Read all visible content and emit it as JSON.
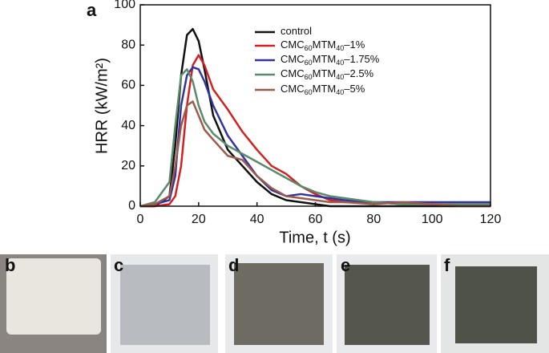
{
  "chart_data": {
    "type": "line",
    "panel_label": "a",
    "x_label": "Time, t (s)",
    "y_label": "HRR (kW/m²)",
    "x": [
      0,
      5,
      10,
      12,
      14,
      16,
      18,
      20,
      22,
      25,
      30,
      35,
      40,
      45,
      50,
      55,
      60,
      65,
      70,
      80,
      90,
      100,
      110,
      120
    ],
    "series": [
      {
        "name": "control",
        "color": "#111111",
        "values": [
          0,
          0,
          5,
          30,
          65,
          85,
          88,
          82,
          68,
          45,
          28,
          20,
          12,
          6,
          3,
          2,
          1,
          0,
          0,
          0,
          0,
          0,
          0,
          0
        ]
      },
      {
        "name": "CMC60MTM40–1%",
        "color": "#d42020",
        "values": [
          0,
          0,
          1,
          5,
          20,
          50,
          70,
          75,
          70,
          58,
          48,
          37,
          28,
          20,
          16,
          10,
          6,
          3,
          2,
          2,
          1,
          1,
          1,
          1
        ]
      },
      {
        "name": "CMC60MTM40–1.75%",
        "color": "#3333a0",
        "values": [
          0,
          1,
          3,
          15,
          50,
          65,
          69,
          68,
          62,
          50,
          35,
          25,
          15,
          8,
          5,
          6,
          5,
          4,
          3,
          2,
          2,
          2,
          2,
          2
        ]
      },
      {
        "name": "CMC60MTM40–2.5%",
        "color": "#5a8a6a",
        "values": [
          0,
          2,
          12,
          40,
          65,
          68,
          62,
          50,
          42,
          36,
          30,
          26,
          22,
          18,
          14,
          10,
          7,
          5,
          4,
          2,
          1,
          1,
          1,
          1
        ]
      },
      {
        "name": "CMC60MTM40–5%",
        "color": "#9c5a4a",
        "values": [
          0,
          1,
          5,
          20,
          40,
          50,
          52,
          45,
          38,
          33,
          25,
          23,
          15,
          9,
          5,
          4,
          3,
          2,
          2,
          1,
          2,
          1,
          0,
          0
        ]
      }
    ],
    "xlim": [
      0,
      120
    ],
    "xticks": [
      0,
      20,
      40,
      60,
      80,
      100,
      120
    ],
    "ylim": [
      0,
      100
    ],
    "yticks": [
      0,
      20,
      40,
      60,
      80,
      100
    ]
  },
  "panels": [
    {
      "label": "b"
    },
    {
      "label": "c"
    },
    {
      "label": "d"
    },
    {
      "label": "e"
    },
    {
      "label": "f"
    }
  ]
}
